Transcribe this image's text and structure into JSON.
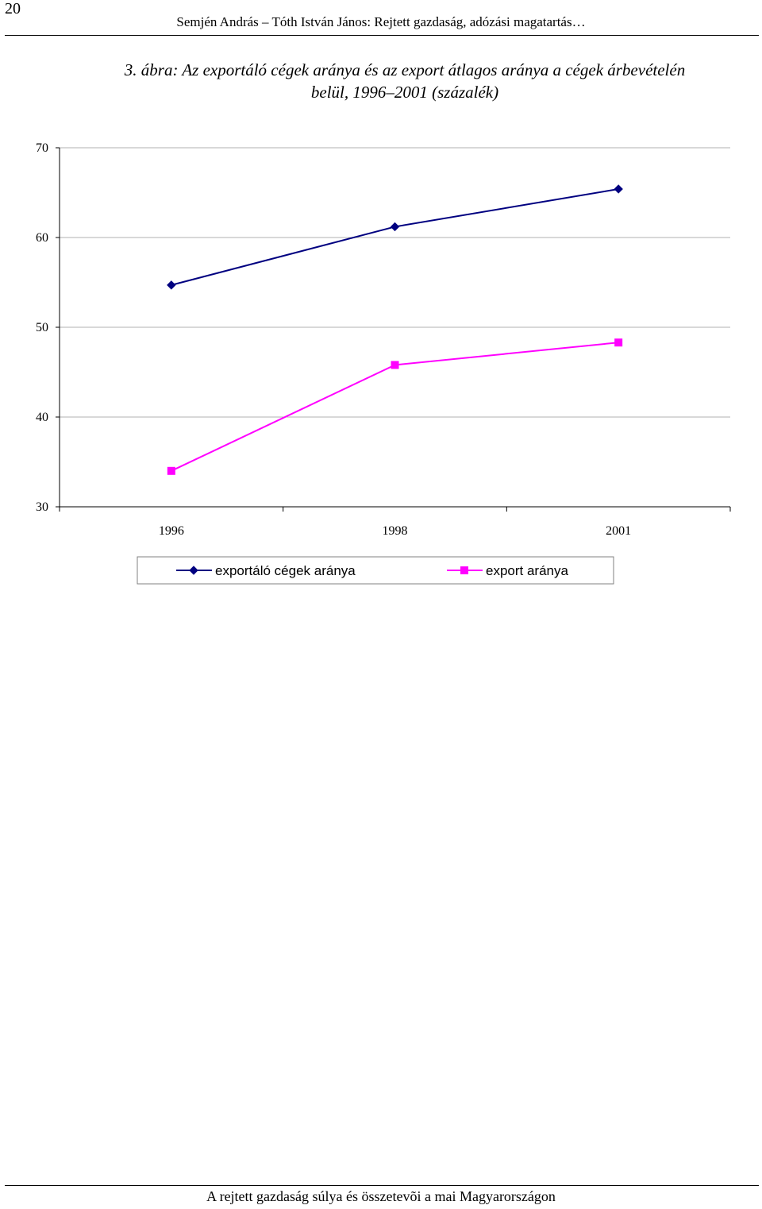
{
  "header": {
    "page_number": "20",
    "running_title": "Semjén András – Tóth István János: Rejtett gazdaság, adózási magatartás…"
  },
  "figure": {
    "title_line1": "3. ábra: Az exportáló cégek aránya és az export átlagos aránya a cégek árbevételén",
    "title_line2": "belül, 1996–2001 (százalék)"
  },
  "footer": {
    "running_title": "A rejtett gazdaság súlya és összetevõi a mai Magyarországon"
  },
  "chart_data": {
    "type": "line",
    "title": "",
    "xlabel": "",
    "ylabel": "",
    "categories": [
      "1996",
      "1998",
      "2001"
    ],
    "ylim": [
      30,
      70
    ],
    "yticks": [
      30,
      40,
      50,
      60,
      70
    ],
    "grid": "horizontal",
    "legend_position": "bottom",
    "series": [
      {
        "name": "exportáló cégek aránya",
        "values": [
          54.7,
          61.2,
          65.4
        ],
        "color": "#000080",
        "marker": "diamond"
      },
      {
        "name": "export aránya",
        "values": [
          34.0,
          45.8,
          48.3
        ],
        "color": "#ff00ff",
        "marker": "square"
      }
    ]
  }
}
